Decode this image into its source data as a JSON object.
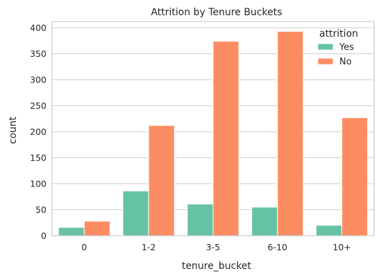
{
  "chart_data": {
    "type": "bar",
    "title": "Attrition by Tenure Buckets",
    "xlabel": "tenure_bucket",
    "ylabel": "count",
    "categories": [
      "0",
      "1-2",
      "3-5",
      "6-10",
      "10+"
    ],
    "series": [
      {
        "name": "Yes",
        "values": [
          16,
          86,
          61,
          55,
          20
        ],
        "color": "#66c2a5"
      },
      {
        "name": "No",
        "values": [
          28,
          212,
          374,
          393,
          227
        ],
        "color": "#fc8d62"
      }
    ],
    "ylim": [
      0,
      412
    ],
    "yticks": [
      0,
      50,
      100,
      150,
      200,
      250,
      300,
      350,
      400
    ],
    "grid": true,
    "legend": {
      "title": "attrition",
      "placement": "top-right"
    }
  }
}
